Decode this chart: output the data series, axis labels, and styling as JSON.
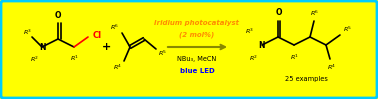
{
  "bg_color": "#FFFF00",
  "border_color": "#00CCFF",
  "border_lw": 2.0,
  "text_color": "#000000",
  "red_color": "#FF0000",
  "blue_color": "#0000FF",
  "orange_color": "#FF8C00",
  "arrow_color": "#888800",
  "fig_width": 3.78,
  "fig_height": 0.99,
  "dpi": 100,
  "reagent_text1": "Iridium photocatalyst",
  "reagent_text2": "(2 mol%)",
  "reagent_text3": "NBu₃, MeCN",
  "reagent_text4": "blue LED",
  "examples_text": "25 examples"
}
